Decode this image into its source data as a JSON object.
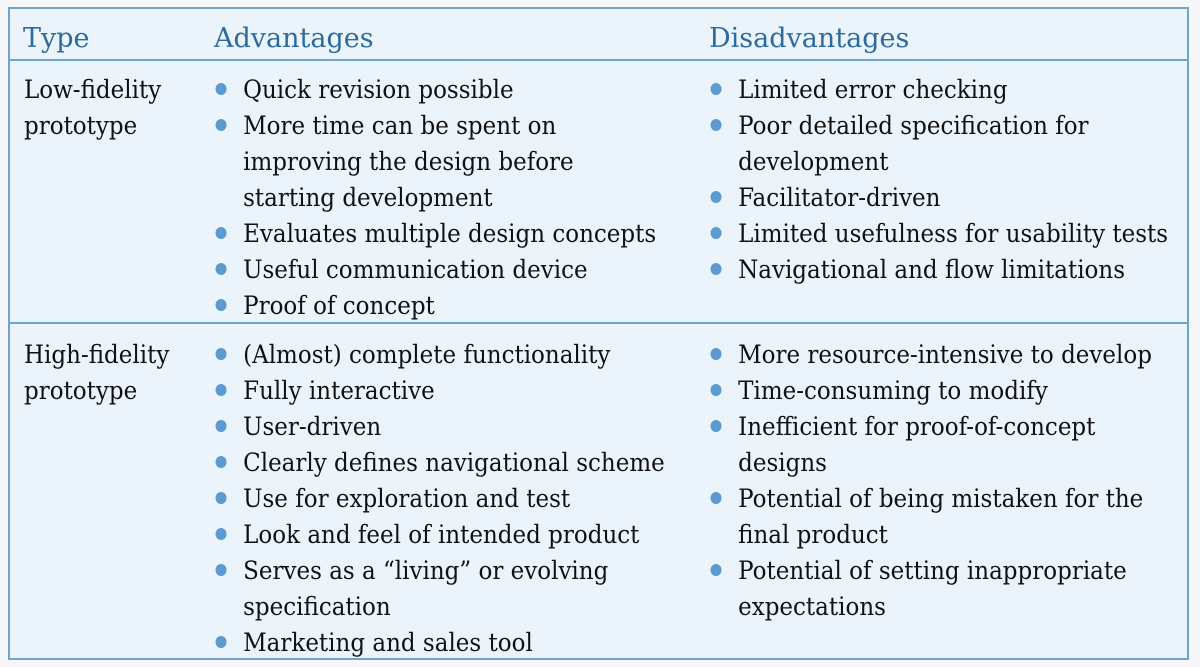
{
  "header": {
    "type": "Type",
    "advantages": "Advantages",
    "disadvantages": "Disadvantages"
  },
  "rows": [
    {
      "type": "Low-fidelity prototype",
      "advantages": [
        "Quick revision possible",
        "More time can be spent on improving the design before starting development",
        "Evaluates multiple design concepts",
        "Useful communication device",
        "Proof of concept"
      ],
      "disadvantages": [
        "Limited error checking",
        "Poor detailed specification for development",
        "Facilitator-driven",
        "Limited usefulness for usability tests",
        "Navigational and flow limitations"
      ]
    },
    {
      "type": "High-fidelity prototype",
      "advantages": [
        "(Almost) complete functionality",
        "Fully interactive",
        "User-driven",
        "Clearly defines navigational scheme",
        "Use for exploration and test",
        "Look and feel of intended product",
        "Serves as a “living” or evolving specification",
        "Marketing and sales tool"
      ],
      "disadvantages": [
        "More resource-intensive to develop",
        "Time-consuming to modify",
        "Inefficient for proof-of-concept designs",
        "Potential of being mistaken for the final product",
        "Potential of setting inappropriate expectations"
      ]
    }
  ],
  "colors": {
    "header_text": "#2c6aa0",
    "border": "#6ea4cf",
    "background": "#ecf4fb",
    "bullet": "#5b9bd1"
  }
}
